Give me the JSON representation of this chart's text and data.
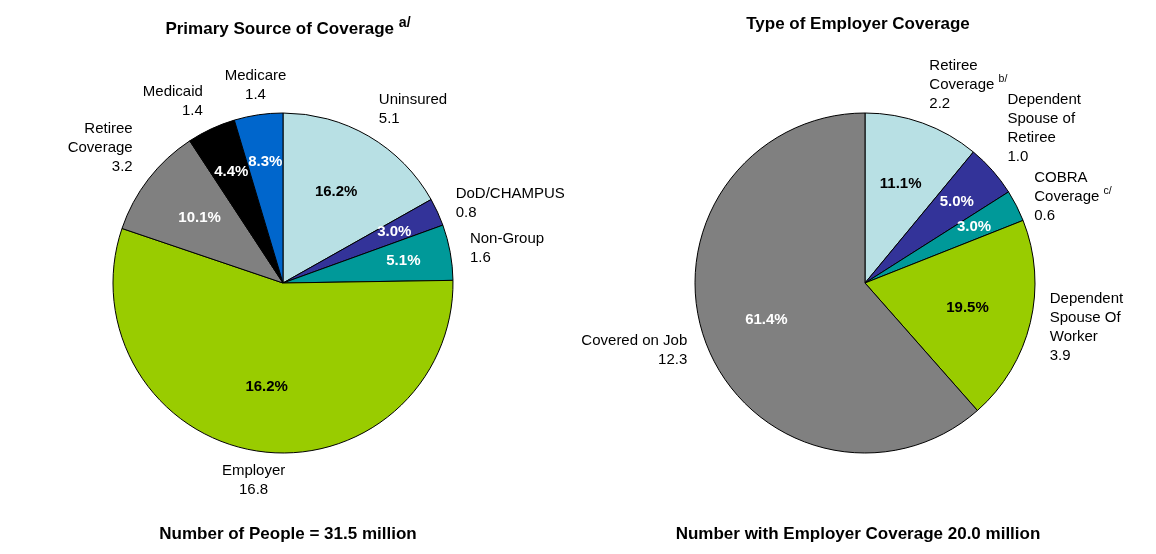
{
  "chart_data": [
    {
      "type": "pie",
      "title": "Primary Source of Coverage $^{a/}$",
      "categories": [
        "Uninsured",
        "DoD/CHAMPUS",
        "Non-Group",
        "Employer",
        "Retiree Coverage",
        "Medicaid",
        "Medicare"
      ],
      "values": [
        5.1,
        0.8,
        1.6,
        16.8,
        3.2,
        1.4,
        1.4
      ],
      "colors": [
        "#b8e0e4",
        "#333399",
        "#009999",
        "#99cc00",
        "#808080",
        "#000000",
        "#0066cc"
      ],
      "value_labels": [
        "5.1",
        "0.8",
        "1.6",
        "16.8",
        "3.2",
        "1.4",
        "1.4"
      ],
      "annotations": [
        "Number of People = 31.5 million",
        {
          "text": "16.2%",
          "x": "Uninsured"
        },
        {
          "text": "3.0%",
          "x": "DoD/CHAMPUS"
        },
        {
          "text": "5.1%",
          "x": "Non-Group"
        },
        {
          "text": "16.2%",
          "x": "Employer"
        },
        {
          "text": "10.1%",
          "x": "Retiree Coverage"
        },
        {
          "text": "4.4%",
          "x": "Medicaid"
        },
        {
          "text": "8.3%",
          "x": "Medicare"
        }
      ]
    },
    {
      "type": "pie",
      "title": "Type of Employer Coverage",
      "categories": [
        "Retiree Coverage $^{b/}$",
        "Dependent Spouse of Retiree",
        "COBRA Coverage $^{c/}$",
        "Dependent Spouse Of Worker",
        "Covered on Job"
      ],
      "values": [
        2.2,
        1.0,
        0.6,
        3.9,
        12.3
      ],
      "colors": [
        "#b8e0e4",
        "#333399",
        "#009999",
        "#99cc00",
        "#808080"
      ],
      "value_labels": [
        "2.2",
        "1.0",
        "0.6",
        "3.9",
        "12.3"
      ],
      "annotations": [
        "Number with Employer Coverage 20.0 million",
        {
          "text": "11.1%",
          "x": "Retiree Coverage $^{b/}$"
        },
        {
          "text": "5.0%",
          "x": "Dependent Spouse of Retiree"
        },
        {
          "text": "3.0%",
          "x": "COBRA Coverage $^{c/}$"
        },
        {
          "text": "19.5%",
          "x": "Dependent Spouse Of Worker"
        },
        {
          "text": "61.4%",
          "x": "Covered on Job"
        }
      ]
    }
  ]
}
